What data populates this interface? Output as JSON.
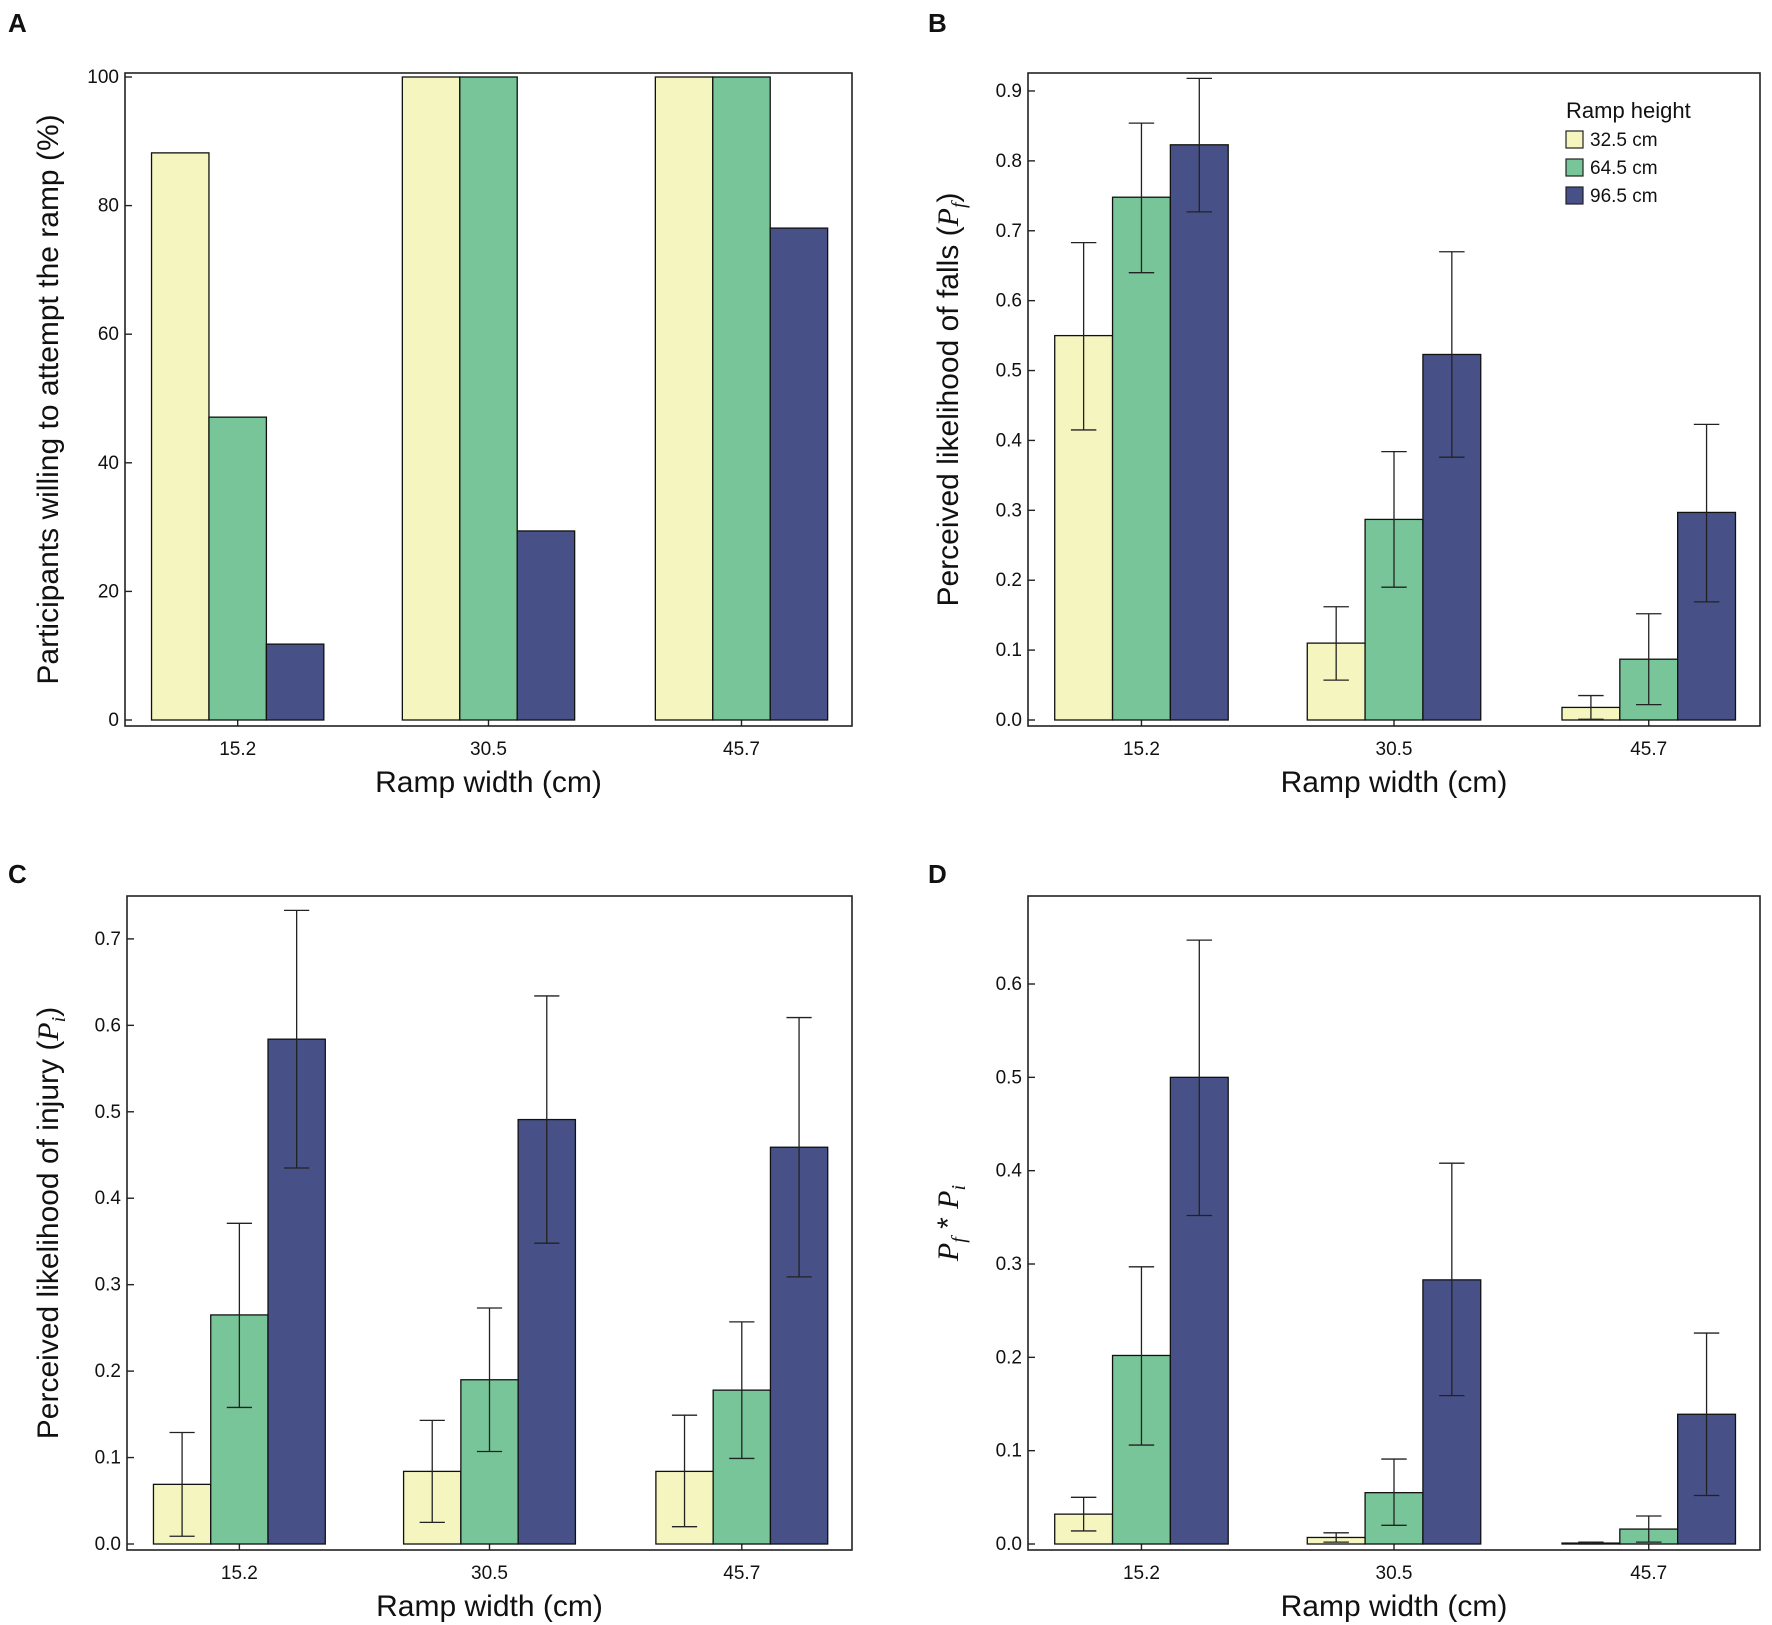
{
  "colors": {
    "32.5": "#f5f5c0",
    "64.5": "#78c59a",
    "96.5": "#485187",
    "edge": "#111111"
  },
  "legend": {
    "title": "Ramp height",
    "entries": [
      "32.5 cm",
      "64.5 cm",
      "96.5 cm"
    ]
  },
  "chart_data": [
    {
      "panel": "A",
      "type": "bar",
      "categories": [
        "15.2",
        "30.5",
        "45.7"
      ],
      "xlabel": "Ramp width (cm)",
      "ylabel_parts": [
        "Participants willing to attempt the ramp (%)"
      ],
      "ylim": [
        0,
        100
      ],
      "yticks": [
        0,
        20,
        40,
        60,
        80,
        100
      ],
      "yticklabels": [
        "0",
        "20",
        "40",
        "60",
        "80",
        "100"
      ],
      "series": [
        {
          "name": "32.5 cm",
          "values": [
            88.2,
            100,
            100
          ]
        },
        {
          "name": "64.5 cm",
          "values": [
            47.1,
            100,
            100
          ]
        },
        {
          "name": "96.5 cm",
          "values": [
            11.8,
            29.4,
            76.5
          ]
        }
      ],
      "legend": false
    },
    {
      "panel": "B",
      "type": "bar",
      "categories": [
        "15.2",
        "30.5",
        "45.7"
      ],
      "xlabel": "Ramp width (cm)",
      "ylabel_parts": [
        "Perceived likelihood of falls (",
        "P",
        "f",
        ")"
      ],
      "ylim": [
        0,
        0.92
      ],
      "yticks": [
        0,
        0.1,
        0.2,
        0.3,
        0.4,
        0.5,
        0.6,
        0.7,
        0.8,
        0.9
      ],
      "yticklabels": [
        "0.0",
        "0.1",
        "0.2",
        "0.3",
        "0.4",
        "0.5",
        "0.6",
        "0.7",
        "0.8",
        "0.9"
      ],
      "series": [
        {
          "name": "32.5 cm",
          "values": [
            0.55,
            0.11,
            0.018
          ],
          "err_low": [
            0.415,
            0.057,
            0.001
          ],
          "err_high": [
            0.683,
            0.162,
            0.035
          ]
        },
        {
          "name": "64.5 cm",
          "values": [
            0.748,
            0.287,
            0.087
          ],
          "err_low": [
            0.64,
            0.19,
            0.022
          ],
          "err_high": [
            0.854,
            0.384,
            0.152
          ]
        },
        {
          "name": "96.5 cm",
          "values": [
            0.823,
            0.523,
            0.297
          ],
          "err_low": [
            0.727,
            0.376,
            0.169
          ],
          "err_high": [
            0.918,
            0.67,
            0.423
          ]
        }
      ],
      "legend": true
    },
    {
      "panel": "C",
      "type": "bar",
      "categories": [
        "15.2",
        "30.5",
        "45.7"
      ],
      "xlabel": "Ramp width (cm)",
      "ylabel_parts": [
        "Perceived likelihood of injury (",
        "P",
        "i",
        ")"
      ],
      "ylim": [
        0,
        0.745
      ],
      "yticks": [
        0,
        0.1,
        0.2,
        0.3,
        0.4,
        0.5,
        0.6,
        0.7
      ],
      "yticklabels": [
        "0.0",
        "0.1",
        "0.2",
        "0.3",
        "0.4",
        "0.5",
        "0.6",
        "0.7"
      ],
      "series": [
        {
          "name": "32.5 cm",
          "values": [
            0.069,
            0.084,
            0.084
          ],
          "err_low": [
            0.009,
            0.025,
            0.02
          ],
          "err_high": [
            0.129,
            0.143,
            0.149
          ]
        },
        {
          "name": "64.5 cm",
          "values": [
            0.265,
            0.19,
            0.178
          ],
          "err_low": [
            0.158,
            0.107,
            0.099
          ],
          "err_high": [
            0.371,
            0.273,
            0.257
          ]
        },
        {
          "name": "96.5 cm",
          "values": [
            0.584,
            0.491,
            0.459
          ],
          "err_low": [
            0.435,
            0.348,
            0.309
          ],
          "err_high": [
            0.733,
            0.634,
            0.609
          ]
        }
      ],
      "legend": false
    },
    {
      "panel": "D",
      "type": "bar",
      "categories": [
        "15.2",
        "30.5",
        "45.7"
      ],
      "xlabel": "Ramp width (cm)",
      "ylabel_parts": [
        "P",
        "f",
        " * ",
        "P",
        "i"
      ],
      "ylim": [
        0,
        0.69
      ],
      "yticks": [
        0,
        0.1,
        0.2,
        0.3,
        0.4,
        0.5,
        0.6
      ],
      "yticklabels": [
        "0.0",
        "0.1",
        "0.2",
        "0.3",
        "0.4",
        "0.5",
        "0.6"
      ],
      "series": [
        {
          "name": "32.5 cm",
          "values": [
            0.032,
            0.007,
            0.001
          ],
          "err_low": [
            0.014,
            0.002,
            0.0
          ],
          "err_high": [
            0.05,
            0.012,
            0.002
          ]
        },
        {
          "name": "64.5 cm",
          "values": [
            0.202,
            0.055,
            0.016
          ],
          "err_low": [
            0.106,
            0.02,
            0.002
          ],
          "err_high": [
            0.297,
            0.091,
            0.03
          ]
        },
        {
          "name": "96.5 cm",
          "values": [
            0.5,
            0.283,
            0.139
          ],
          "err_low": [
            0.352,
            0.159,
            0.052
          ],
          "err_high": [
            0.647,
            0.408,
            0.226
          ]
        }
      ],
      "legend": false
    }
  ]
}
